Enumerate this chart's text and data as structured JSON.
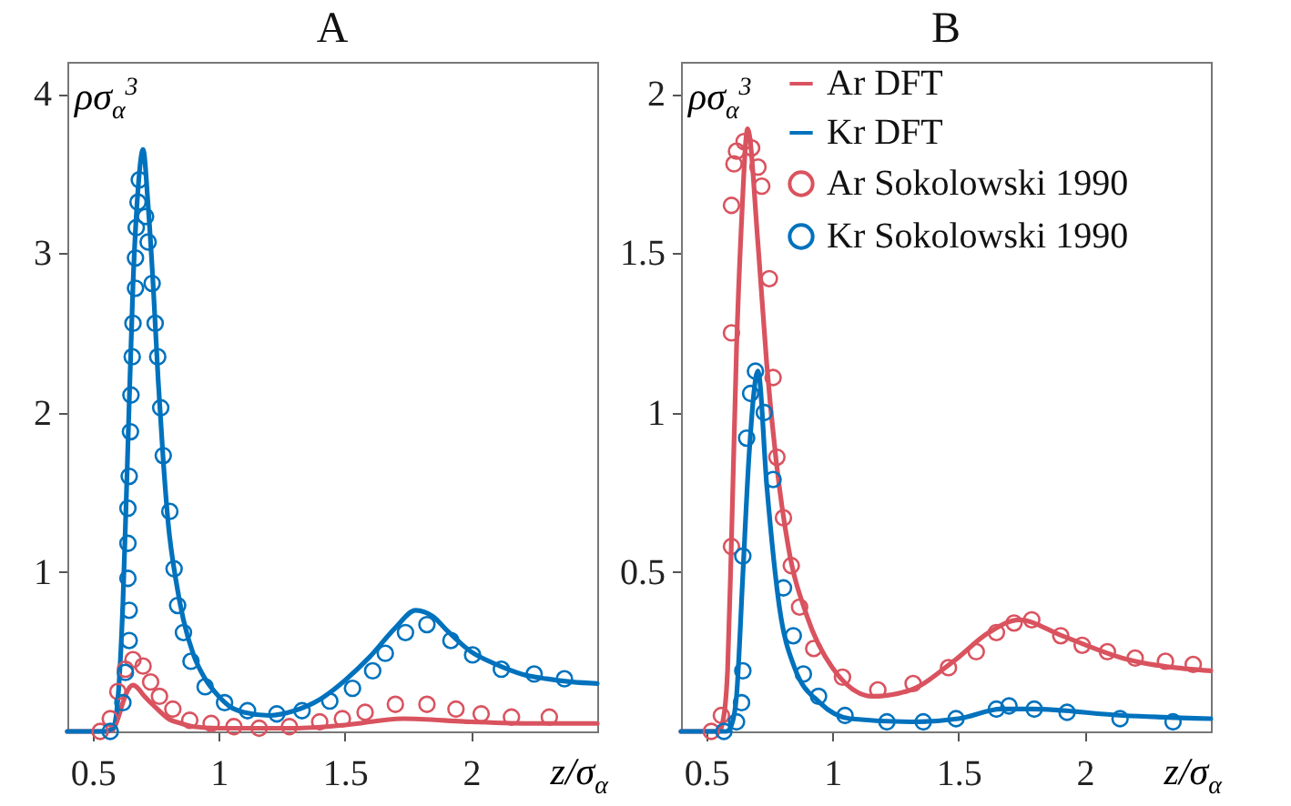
{
  "chart_data": [
    {
      "type": "line",
      "title": "A",
      "xlabel": "z/σ$_{α}$",
      "ylabel": "ρσ$_{α}$$^{3}$",
      "xlim": [
        0.4,
        2.5
      ],
      "ylim": [
        0,
        4.2
      ],
      "xticks": [
        0.5,
        1,
        1.5,
        2
      ],
      "yticks": [
        1,
        2,
        3,
        4
      ],
      "series": [
        {
          "type": "line",
          "color": "#d9535f",
          "x": [
            0.4,
            0.55,
            0.58,
            0.6,
            0.62,
            0.64,
            0.66,
            0.68,
            0.7,
            0.75,
            0.8,
            0.85,
            0.9,
            1.0,
            1.15,
            1.3,
            1.5,
            1.73,
            2.0,
            2.25,
            2.5
          ],
          "values": [
            0,
            0,
            0.01,
            0.08,
            0.18,
            0.26,
            0.29,
            0.27,
            0.23,
            0.15,
            0.08,
            0.05,
            0.03,
            0.02,
            0.02,
            0.02,
            0.04,
            0.08,
            0.06,
            0.05,
            0.05
          ]
        },
        {
          "type": "line",
          "color": "#0072bd",
          "x": [
            0.4,
            0.55,
            0.58,
            0.6,
            0.62,
            0.64,
            0.66,
            0.68,
            0.7,
            0.72,
            0.74,
            0.76,
            0.78,
            0.8,
            0.83,
            0.86,
            0.9,
            0.95,
            1.0,
            1.05,
            1.1,
            1.2,
            1.3,
            1.4,
            1.5,
            1.6,
            1.7,
            1.78,
            1.85,
            1.9,
            2.0,
            2.1,
            2.2,
            2.3,
            2.4,
            2.5
          ],
          "values": [
            0,
            0,
            0.02,
            0.2,
            0.8,
            1.8,
            2.8,
            3.4,
            3.65,
            3.3,
            2.8,
            2.2,
            1.7,
            1.3,
            0.95,
            0.7,
            0.48,
            0.32,
            0.22,
            0.15,
            0.12,
            0.1,
            0.13,
            0.2,
            0.32,
            0.47,
            0.65,
            0.76,
            0.72,
            0.64,
            0.5,
            0.42,
            0.36,
            0.33,
            0.31,
            0.3
          ]
        },
        {
          "type": "scatter",
          "marker": "circle",
          "color": "#d9535f",
          "x": [
            0.53,
            0.57,
            0.6,
            0.63,
            0.66,
            0.7,
            0.73,
            0.765,
            0.818,
            0.885,
            0.97,
            1.06,
            1.16,
            1.28,
            1.4,
            1.49,
            1.58,
            1.7,
            1.825,
            1.94,
            2.04,
            2.16,
            2.31
          ],
          "values": [
            0,
            0.08,
            0.25,
            0.39,
            0.45,
            0.41,
            0.31,
            0.22,
            0.14,
            0.07,
            0.05,
            0.03,
            0.02,
            0.03,
            0.06,
            0.08,
            0.12,
            0.17,
            0.17,
            0.14,
            0.11,
            0.09,
            0.09
          ]
        },
        {
          "type": "scatter",
          "marker": "circle",
          "color": "#0072bd",
          "x": [
            0.57,
            0.62,
            0.63,
            0.645,
            0.645,
            0.64,
            0.64,
            0.64,
            0.645,
            0.65,
            0.652,
            0.657,
            0.66,
            0.67,
            0.67,
            0.673,
            0.68,
            0.685,
            0.71,
            0.72,
            0.736,
            0.748,
            0.758,
            0.77,
            0.78,
            0.806,
            0.823,
            0.837,
            0.86,
            0.89,
            0.946,
            1.023,
            1.114,
            1.23,
            1.33,
            1.44,
            1.53,
            1.61,
            1.66,
            1.74,
            1.825,
            1.92,
            2.006,
            2.12,
            2.25,
            2.37
          ],
          "values": [
            0,
            0.18,
            0.37,
            0.57,
            0.76,
            0.96,
            1.18,
            1.4,
            1.6,
            1.88,
            2.11,
            2.35,
            2.56,
            2.78,
            2.97,
            3.16,
            3.32,
            3.46,
            3.23,
            3.07,
            2.81,
            2.56,
            2.35,
            2.03,
            1.73,
            1.38,
            1.02,
            0.79,
            0.62,
            0.44,
            0.28,
            0.18,
            0.13,
            0.11,
            0.13,
            0.19,
            0.27,
            0.38,
            0.49,
            0.62,
            0.67,
            0.57,
            0.48,
            0.39,
            0.36,
            0.33
          ]
        }
      ]
    },
    {
      "type": "line",
      "title": "B",
      "xlabel": "z/σ$_{α}$",
      "ylabel": "ρσ$_{α}$$^{3}$",
      "xlim": [
        0.4,
        2.5
      ],
      "ylim": [
        0,
        2.1
      ],
      "xticks": [
        0.5,
        1,
        1.5,
        2
      ],
      "yticks": [
        0.5,
        1,
        1.5,
        2
      ],
      "legend": "top left",
      "series": [
        {
          "name": "Ar DFT",
          "type": "line",
          "color": "#d9535f",
          "x": [
            0.4,
            0.55,
            0.57,
            0.585,
            0.6,
            0.62,
            0.64,
            0.664,
            0.705,
            0.74,
            0.777,
            0.825,
            0.9,
            1.0,
            1.16,
            1.31,
            1.48,
            1.62,
            1.74,
            1.91,
            2.15,
            2.5
          ],
          "values": [
            0,
            0,
            0.05,
            0.2,
            0.6,
            1.2,
            1.6,
            1.89,
            1.53,
            1.15,
            0.85,
            0.58,
            0.36,
            0.2,
            0.11,
            0.13,
            0.22,
            0.31,
            0.35,
            0.3,
            0.23,
            0.19
          ]
        },
        {
          "name": "Kr DFT",
          "type": "line",
          "color": "#0072bd",
          "x": [
            0.4,
            0.58,
            0.6,
            0.62,
            0.645,
            0.67,
            0.705,
            0.74,
            0.79,
            0.85,
            0.95,
            1.07,
            1.31,
            1.5,
            1.67,
            1.79,
            2.15,
            2.5
          ],
          "values": [
            0,
            0,
            0.02,
            0.11,
            0.49,
            0.87,
            1.13,
            0.77,
            0.39,
            0.2,
            0.09,
            0.04,
            0.03,
            0.04,
            0.07,
            0.07,
            0.05,
            0.04
          ]
        },
        {
          "name": "Ar Sokolowski 1990",
          "type": "scatter",
          "marker": "circle",
          "color": "#d9535f",
          "x": [
            0.52,
            0.56,
            0.6,
            0.6,
            0.6,
            0.61,
            0.62,
            0.65,
            0.68,
            0.705,
            0.72,
            0.75,
            0.765,
            0.78,
            0.806,
            0.837,
            0.87,
            0.926,
            1.04,
            1.18,
            1.32,
            1.46,
            1.57,
            1.65,
            1.72,
            1.79,
            1.905,
            1.99,
            2.09,
            2.2,
            2.32,
            2.43
          ],
          "values": [
            0,
            0.05,
            0.58,
            1.25,
            1.65,
            1.78,
            1.82,
            1.85,
            1.83,
            1.77,
            1.71,
            1.42,
            1.11,
            0.86,
            0.67,
            0.52,
            0.39,
            0.26,
            0.17,
            0.13,
            0.15,
            0.2,
            0.25,
            0.31,
            0.34,
            0.35,
            0.3,
            0.27,
            0.25,
            0.23,
            0.22,
            0.21
          ]
        },
        {
          "name": "Kr Sokolowski 1990",
          "type": "scatter",
          "marker": "circle",
          "color": "#0072bd",
          "x": [
            0.57,
            0.62,
            0.64,
            0.645,
            0.645,
            0.66,
            0.676,
            0.695,
            0.73,
            0.765,
            0.806,
            0.845,
            0.885,
            0.945,
            1.05,
            1.216,
            1.36,
            1.49,
            1.65,
            1.7,
            1.8,
            1.93,
            2.14,
            2.35
          ],
          "values": [
            0,
            0.03,
            0.09,
            0.19,
            0.55,
            0.92,
            1.06,
            1.13,
            1.0,
            0.79,
            0.45,
            0.3,
            0.18,
            0.11,
            0.05,
            0.03,
            0.03,
            0.04,
            0.07,
            0.08,
            0.07,
            0.06,
            0.04,
            0.03
          ]
        }
      ]
    }
  ]
}
